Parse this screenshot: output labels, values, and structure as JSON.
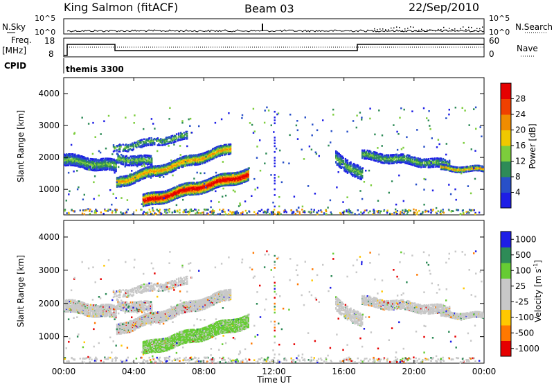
{
  "header": {
    "station": "King Salmon (fitACF)",
    "beam": "Beam 03",
    "date": "22/Sep/2010"
  },
  "top_panels": {
    "nsky_label": "N.Sky",
    "nsky_ticks": [
      "10^5",
      "10^0"
    ],
    "nsearch_label": "N.Search",
    "nsearch_ticks": [
      "10^5",
      "10^0"
    ],
    "freq_label_1": "Freq.",
    "freq_label_2": "[MHz]",
    "freq_ticks": [
      "18",
      "8"
    ],
    "nave_label": "Nave",
    "nave_ticks": [
      "60",
      "0"
    ],
    "cpid_label": "CPID",
    "cpid_value": "themis 3300"
  },
  "colors": {
    "power_scale": [
      "#1e1ee6",
      "#2850c8",
      "#2e8b57",
      "#7ccd3c",
      "#f0c800",
      "#f08c00",
      "#f04000",
      "#e60000"
    ],
    "velocity_scale": [
      "#e60000",
      "#ff7800",
      "#ffc800",
      "#c8c8c8",
      "#c8c8c8",
      "#66cc33",
      "#2e8b57",
      "#1e1ee6"
    ],
    "ground_scatter": "#c8c8c8"
  },
  "chart_data": [
    {
      "type": "heatmap",
      "name": "power",
      "ylabel": "Slant Range [km]",
      "yticks": [
        "1000",
        "2000",
        "3000",
        "4000"
      ],
      "ylim": [
        200,
        4500
      ],
      "xlim": [
        0,
        24
      ],
      "colorbar_label": "Power [dB]",
      "colorbar_ticks": [
        "4",
        "8",
        "12",
        "16",
        "20",
        "24",
        "28"
      ],
      "colorbar_range": [
        0,
        32
      ]
    },
    {
      "type": "heatmap",
      "name": "velocity",
      "ylabel": "Slant Range [km]",
      "yticks": [
        "1000",
        "2000",
        "3000",
        "4000"
      ],
      "ylim": [
        200,
        4500
      ],
      "xlim": [
        0,
        24
      ],
      "colorbar_label": "Velocity [m s",
      "colorbar_label_sup": "-1",
      "colorbar_label_end": "]",
      "colorbar_ticks": [
        "1000",
        "500",
        "100",
        "25",
        "-25",
        "-100",
        "-500",
        "-1000"
      ]
    }
  ],
  "xaxis": {
    "title": "Time UT",
    "ticks": [
      "00:00",
      "04:00",
      "08:00",
      "12:00",
      "16:00",
      "20:00",
      "00:00"
    ],
    "tick_hours": [
      0,
      4,
      8,
      12,
      16,
      20,
      24
    ]
  }
}
